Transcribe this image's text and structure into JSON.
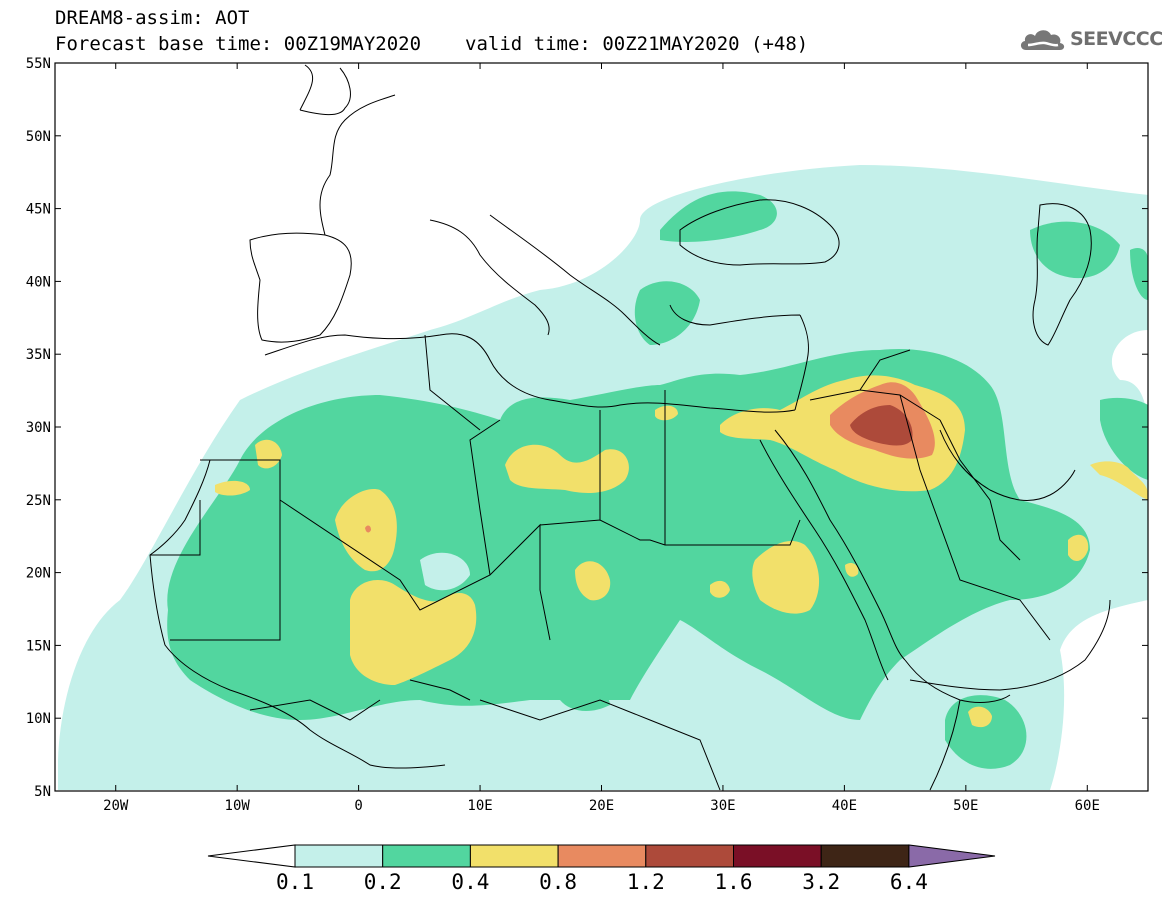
{
  "title": {
    "line1": "DREAM8-assim: AOT",
    "base_time": "Forecast base time: 00Z19MAY2020",
    "valid_time": "valid time: 00Z21MAY2020 (+48)"
  },
  "logo": {
    "text": "SEEVCCC",
    "icon": "cloud-icon"
  },
  "map": {
    "lon_range": [
      -25,
      65
    ],
    "lat_range": [
      5,
      55
    ],
    "lat_ticks": [
      {
        "value": 5,
        "label": "5N"
      },
      {
        "value": 10,
        "label": "10N"
      },
      {
        "value": 15,
        "label": "15N"
      },
      {
        "value": 20,
        "label": "20N"
      },
      {
        "value": 25,
        "label": "25N"
      },
      {
        "value": 30,
        "label": "30N"
      },
      {
        "value": 35,
        "label": "35N"
      },
      {
        "value": 40,
        "label": "40N"
      },
      {
        "value": 45,
        "label": "45N"
      },
      {
        "value": 50,
        "label": "50N"
      },
      {
        "value": 55,
        "label": "55N"
      }
    ],
    "lon_ticks": [
      {
        "value": -20,
        "label": "20W"
      },
      {
        "value": -10,
        "label": "10W"
      },
      {
        "value": 0,
        "label": "0"
      },
      {
        "value": 10,
        "label": "10E"
      },
      {
        "value": 20,
        "label": "20E"
      },
      {
        "value": 30,
        "label": "30E"
      },
      {
        "value": 40,
        "label": "40E"
      },
      {
        "value": 50,
        "label": "50E"
      },
      {
        "value": 60,
        "label": "60E"
      }
    ]
  },
  "colorbar": {
    "under_color": "#ffffff",
    "over_color": "#8a6aa8",
    "colors": [
      "#c4f0ea",
      "#52d69f",
      "#f2e06a",
      "#e88a60",
      "#ad4a3a",
      "#7a0f26",
      "#3e2516"
    ],
    "labels": [
      "0.1",
      "0.2",
      "0.4",
      "0.8",
      "1.2",
      "1.6",
      "3.2",
      "6.4"
    ]
  }
}
